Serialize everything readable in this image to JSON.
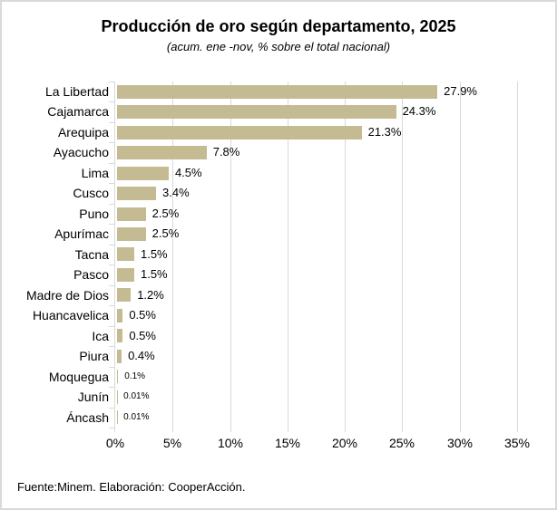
{
  "chart_data": {
    "type": "bar",
    "orientation": "horizontal",
    "title": "Producción de oro según departamento, 2025",
    "subtitle": "(acum. ene -nov, % sobre el total nacional)",
    "categories": [
      "La Libertad",
      "Cajamarca",
      "Arequipa",
      "Ayacucho",
      "Lima",
      "Cusco",
      "Puno",
      "Apurímac",
      "Tacna",
      "Pasco",
      "Madre de Dios",
      "Huancavelica",
      "Ica",
      "Piura",
      "Moquegua",
      "Junín",
      "Áncash"
    ],
    "values": [
      27.9,
      24.3,
      21.3,
      7.8,
      4.5,
      3.4,
      2.5,
      2.5,
      1.5,
      1.5,
      1.2,
      0.5,
      0.5,
      0.4,
      0.1,
      0.01,
      0.01
    ],
    "value_labels": [
      "27.9%",
      "24.3%",
      "21.3%",
      "7.8%",
      "4.5%",
      "3.4%",
      "2.5%",
      "2.5%",
      "1.5%",
      "1.5%",
      "1.2%",
      "0.5%",
      "0.5%",
      "0.4%",
      "0.1%",
      "0.01%",
      "0.01%"
    ],
    "value_label_small": [
      false,
      false,
      false,
      false,
      false,
      false,
      false,
      false,
      false,
      false,
      false,
      false,
      false,
      false,
      true,
      true,
      true
    ],
    "xlim": [
      0,
      35
    ],
    "x_ticks": [
      "0%",
      "5%",
      "10%",
      "15%",
      "20%",
      "25%",
      "30%",
      "35%"
    ],
    "x_tick_step": 5,
    "grid": true,
    "legend": "none",
    "bar_color": "#C4BB93",
    "grid_color": "#D9D9D9",
    "text_color": "#000000"
  },
  "footer": {
    "source": "Fuente:Minem. Elaboración: CooperAcción."
  }
}
